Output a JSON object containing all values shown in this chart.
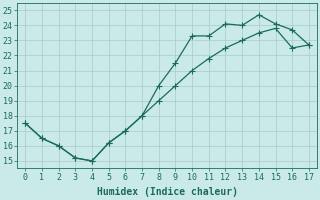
{
  "upper_x": [
    0,
    1,
    2,
    3,
    4,
    5,
    6,
    7,
    8,
    9,
    10,
    11,
    12,
    13,
    14,
    15,
    16,
    17
  ],
  "upper_y": [
    17.5,
    16.5,
    16.0,
    15.2,
    15.0,
    16.2,
    17.0,
    18.0,
    20.0,
    21.5,
    23.3,
    23.3,
    24.1,
    24.0,
    24.7,
    24.1,
    23.7,
    22.7
  ],
  "lower_x": [
    0,
    1,
    2,
    3,
    4,
    5,
    6,
    7,
    8,
    9,
    10,
    11,
    12,
    13,
    14,
    15,
    16,
    17
  ],
  "lower_y": [
    17.5,
    16.5,
    16.0,
    15.2,
    15.0,
    16.2,
    17.0,
    18.0,
    19.0,
    20.0,
    21.0,
    21.8,
    22.5,
    23.0,
    23.5,
    23.8,
    22.5,
    22.7
  ],
  "line_color": "#1a6b5a",
  "bg_color": "#caeaea",
  "grid_color": "#b8d8d8",
  "xlabel": "Humidex (Indice chaleur)",
  "xlim": [
    -0.5,
    17.5
  ],
  "ylim": [
    14.5,
    25.5
  ],
  "xticks": [
    0,
    1,
    2,
    3,
    4,
    5,
    6,
    7,
    8,
    9,
    10,
    11,
    12,
    13,
    14,
    15,
    16,
    17
  ],
  "yticks": [
    15,
    16,
    17,
    18,
    19,
    20,
    21,
    22,
    23,
    24,
    25
  ],
  "markersize": 2.5,
  "linewidth": 0.9,
  "xlabel_fontsize": 7,
  "tick_fontsize": 6
}
